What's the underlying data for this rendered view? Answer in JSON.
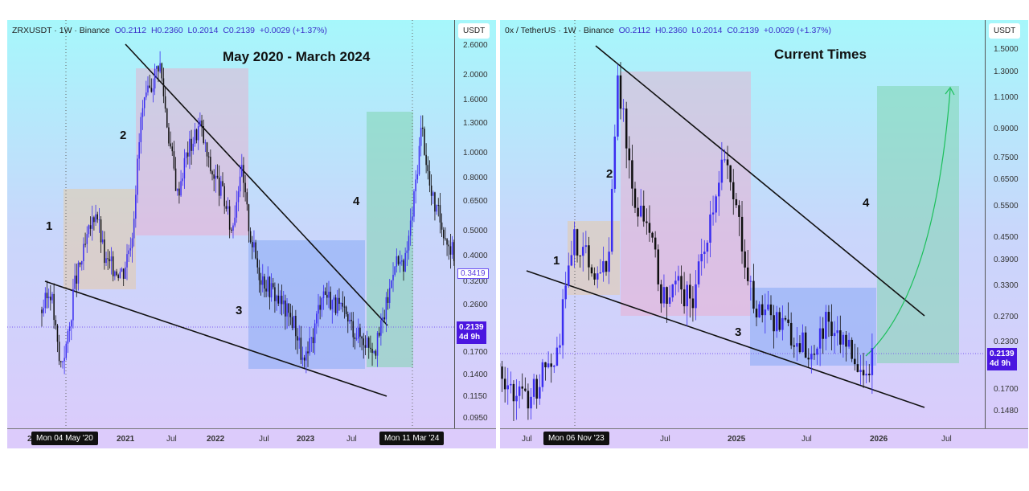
{
  "left": {
    "symbol": "ZRXUSDT · 1W · Binance",
    "o": "O0.2112",
    "h": "H0.2360",
    "l": "L0.2014",
    "c": "C0.2139",
    "chg": "+0.0029 (+1.37%)",
    "title": "May 2020 - March 2024",
    "currency": "USDT",
    "yticks": [
      "2.6000",
      "2.0000",
      "1.6000",
      "1.3000",
      "1.0000",
      "0.8000",
      "0.6500",
      "0.5000",
      "0.4000",
      "0.3200",
      "0.2600",
      "0.1700",
      "0.1400",
      "0.1150",
      "0.0950"
    ],
    "xticks": [
      "2",
      "2021",
      "Jul",
      "2022",
      "Jul",
      "2023",
      "Jul"
    ],
    "flag_start": "Mon 04 May '20",
    "flag_end": "Mon 11 Mar '24",
    "last_price": "0.2139",
    "countdown": "4d 9h",
    "marker_price": "0.3419",
    "waves": [
      "1",
      "2",
      "3",
      "4"
    ]
  },
  "right": {
    "symbol": "0x / TetherUS · 1W · Binance",
    "o": "O0.2112",
    "h": "H0.2360",
    "l": "L0.2014",
    "c": "C0.2139",
    "chg": "+0.0029 (+1.37%)",
    "title": "Current Times",
    "currency": "USDT",
    "yticks": [
      "1.5000",
      "1.3000",
      "1.1000",
      "0.9000",
      "0.7500",
      "0.6500",
      "0.5500",
      "0.4500",
      "0.3900",
      "0.3300",
      "0.2700",
      "0.2300",
      "0.1700",
      "0.1480"
    ],
    "xticks": [
      "Jul",
      "Jul",
      "2025",
      "Jul",
      "2026",
      "Jul"
    ],
    "flag_start": "Mon 06 Nov '23",
    "last_price": "0.2139",
    "countdown": "4d 9h",
    "waves": [
      "1",
      "2",
      "3",
      "4"
    ]
  },
  "chart_data": [
    {
      "type": "candlestick",
      "title": "May 2020 - March 2024",
      "scale": "log",
      "ylim": [
        0.09,
        2.8
      ],
      "keyframes": [
        [
          2020.0,
          0.25
        ],
        [
          2020.1,
          0.3
        ],
        [
          2020.2,
          0.15
        ],
        [
          2020.3,
          0.2
        ],
        [
          2020.35,
          0.3
        ],
        [
          2020.45,
          0.4
        ],
        [
          2020.6,
          0.62
        ],
        [
          2020.7,
          0.38
        ],
        [
          2020.9,
          0.35
        ],
        [
          2021.0,
          0.5
        ],
        [
          2021.1,
          1.4
        ],
        [
          2021.3,
          2.3
        ],
        [
          2021.4,
          1.2
        ],
        [
          2021.5,
          0.7
        ],
        [
          2021.6,
          1.0
        ],
        [
          2021.75,
          1.3
        ],
        [
          2021.85,
          0.9
        ],
        [
          2022.0,
          0.7
        ],
        [
          2022.1,
          0.5
        ],
        [
          2022.2,
          0.9
        ],
        [
          2022.3,
          0.5
        ],
        [
          2022.4,
          0.35
        ],
        [
          2022.6,
          0.28
        ],
        [
          2022.8,
          0.22
        ],
        [
          2022.9,
          0.15
        ],
        [
          2023.0,
          0.2
        ],
        [
          2023.1,
          0.3
        ],
        [
          2023.3,
          0.25
        ],
        [
          2023.5,
          0.2
        ],
        [
          2023.7,
          0.18
        ],
        [
          2023.85,
          0.3
        ],
        [
          2023.9,
          0.4
        ],
        [
          2024.0,
          0.35
        ],
        [
          2024.1,
          0.6
        ],
        [
          2024.2,
          1.3
        ],
        [
          2024.3,
          0.7
        ],
        [
          2024.5,
          0.45
        ],
        [
          2024.7,
          0.33
        ],
        [
          2024.75,
          0.3419
        ]
      ]
    },
    {
      "type": "candlestick",
      "title": "Current Times",
      "scale": "log",
      "ylim": [
        0.13,
        1.6
      ],
      "keyframes": [
        [
          2023.2,
          0.25
        ],
        [
          2023.35,
          0.2
        ],
        [
          2023.5,
          0.17
        ],
        [
          2023.6,
          0.16
        ],
        [
          2023.8,
          0.22
        ],
        [
          2023.9,
          0.45
        ],
        [
          2024.0,
          0.4
        ],
        [
          2024.1,
          0.35
        ],
        [
          2024.15,
          0.45
        ],
        [
          2024.2,
          1.3
        ],
        [
          2024.3,
          0.6
        ],
        [
          2024.4,
          0.5
        ],
        [
          2024.5,
          0.3
        ],
        [
          2024.6,
          0.33
        ],
        [
          2024.7,
          0.3
        ],
        [
          2024.9,
          0.75
        ],
        [
          2025.0,
          0.5
        ],
        [
          2025.1,
          0.3
        ],
        [
          2025.3,
          0.25
        ],
        [
          2025.5,
          0.22
        ],
        [
          2025.6,
          0.27
        ],
        [
          2025.75,
          0.22
        ],
        [
          2025.85,
          0.19
        ],
        [
          2025.9,
          0.2139
        ]
      ]
    }
  ]
}
